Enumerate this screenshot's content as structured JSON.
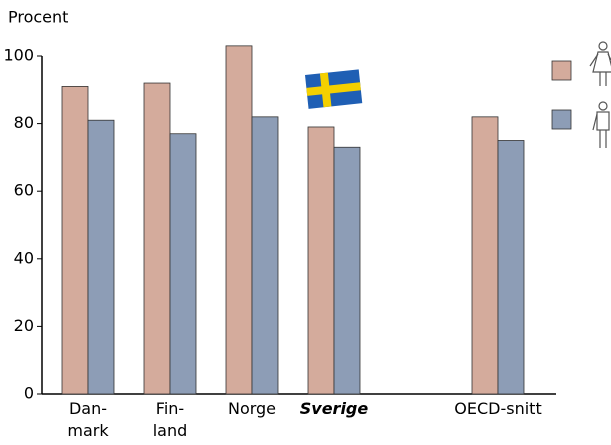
{
  "chart_data": {
    "type": "bar",
    "y_label": "Procent",
    "categories": [
      "Dan-\nmark",
      "Fin-\nland",
      "Norge",
      "Sverige",
      null,
      "OECD-snitt"
    ],
    "series": [
      {
        "color": "#d4ab9c",
        "values": [
          91,
          92,
          103,
          79,
          null,
          82
        ]
      },
      {
        "color": "#8d9db6",
        "values": [
          81,
          77,
          82,
          73,
          null,
          75
        ]
      }
    ],
    "ylim": [
      0,
      100
    ],
    "yticks": [
      0,
      20,
      40,
      60,
      80,
      100
    ],
    "grid": false
  }
}
